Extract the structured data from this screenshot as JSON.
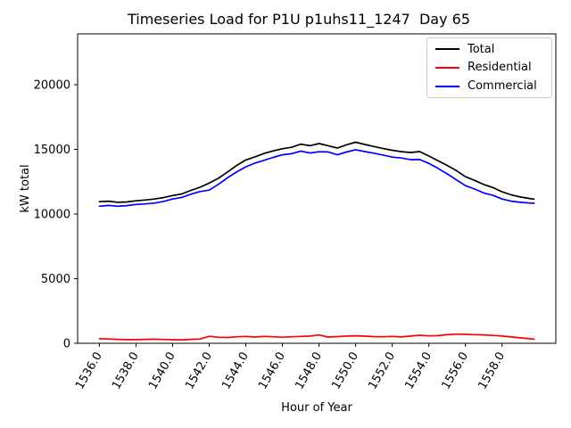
{
  "window": {
    "background": "#ffffff"
  },
  "chart_data": {
    "type": "line",
    "title": "Timeseries Load for P1U p1uhs11_1247  Day 65",
    "xlabel": "Hour of Year",
    "ylabel": "kW total",
    "xlim": [
      1534.8125,
      1560.9375
    ],
    "ylim": [
      0,
      23930
    ],
    "grid": false,
    "x_ticks": [
      1536,
      1538,
      1540,
      1542,
      1544,
      1546,
      1548,
      1550,
      1552,
      1554,
      1556,
      1558
    ],
    "x_tick_labels": [
      "1536.0",
      "1538.0",
      "1540.0",
      "1542.0",
      "1544.0",
      "1546.0",
      "1548.0",
      "1550.0",
      "1552.0",
      "1554.0",
      "1556.0",
      "1558.0"
    ],
    "x_tick_rotation_deg": 60,
    "y_ticks": [
      0,
      5000,
      10000,
      15000,
      20000
    ],
    "y_tick_labels": [
      "0",
      "5000",
      "10000",
      "15000",
      "20000"
    ],
    "x": [
      1536.0,
      1536.5,
      1537.0,
      1537.5,
      1538.0,
      1538.5,
      1539.0,
      1539.5,
      1540.0,
      1540.5,
      1541.0,
      1541.5,
      1542.0,
      1542.5,
      1543.0,
      1543.5,
      1544.0,
      1544.5,
      1545.0,
      1545.5,
      1546.0,
      1546.5,
      1547.0,
      1547.5,
      1548.0,
      1548.5,
      1549.0,
      1549.5,
      1550.0,
      1550.5,
      1551.0,
      1551.5,
      1552.0,
      1552.5,
      1553.0,
      1553.5,
      1554.0,
      1554.5,
      1555.0,
      1555.5,
      1556.0,
      1556.5,
      1557.0,
      1557.5,
      1558.0,
      1558.5,
      1559.0,
      1559.5,
      1559.75
    ],
    "series": [
      {
        "name": "Total",
        "color": "#000000",
        "values": [
          10950,
          10990,
          10900,
          10930,
          11020,
          11080,
          11160,
          11270,
          11430,
          11550,
          11830,
          12070,
          12390,
          12760,
          13250,
          13750,
          14180,
          14420,
          14680,
          14880,
          15050,
          15160,
          15400,
          15280,
          15450,
          15280,
          15100,
          15350,
          15550,
          15380,
          15220,
          15060,
          14930,
          14820,
          14760,
          14830,
          14480,
          14120,
          13760,
          13360,
          12880,
          12600,
          12280,
          12050,
          11720,
          11480,
          11320,
          11200,
          11150
        ]
      },
      {
        "name": "Residential",
        "color": "#ff0000",
        "values": [
          350,
          330,
          300,
          285,
          280,
          300,
          320,
          295,
          275,
          270,
          300,
          330,
          540,
          470,
          450,
          500,
          530,
          480,
          530,
          500,
          470,
          500,
          530,
          560,
          640,
          480,
          520,
          560,
          580,
          550,
          520,
          500,
          530,
          490,
          560,
          620,
          570,
          590,
          660,
          710,
          690,
          670,
          650,
          610,
          560,
          490,
          420,
          350,
          320
        ]
      },
      {
        "name": "Commercial",
        "color": "#0000ff",
        "values": [
          10600,
          10660,
          10600,
          10645,
          10740,
          10780,
          10840,
          10975,
          11155,
          11280,
          11530,
          11740,
          11850,
          12290,
          12800,
          13250,
          13650,
          13940,
          14150,
          14380,
          14580,
          14660,
          14870,
          14720,
          14810,
          14800,
          14580,
          14790,
          14970,
          14830,
          14700,
          14560,
          14400,
          14330,
          14200,
          14210,
          13910,
          13530,
          13100,
          12650,
          12190,
          11930,
          11630,
          11440,
          11160,
          10990,
          10900,
          10850,
          10830
        ]
      }
    ],
    "legend": {
      "position": "upper right",
      "entries": [
        "Total",
        "Residential",
        "Commercial"
      ]
    }
  }
}
